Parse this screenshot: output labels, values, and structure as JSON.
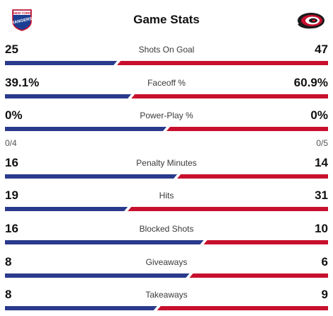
{
  "header": {
    "title": "Game Stats",
    "left_logo_icon": "new-york-rangers-logo-icon",
    "right_logo_icon": "carolina-hurricanes-logo-icon",
    "left_color": "#2a3a8c",
    "right_color": "#c8102e"
  },
  "stats": [
    {
      "label": "Shots On Goal",
      "left": "25",
      "right": "47",
      "left_share": 0.347
    },
    {
      "label": "Faceoff %",
      "left": "39.1%",
      "right": "60.9%",
      "left_share": 0.391
    },
    {
      "label": "Power-Play %",
      "left": "0%",
      "right": "0%",
      "left_share": 0.5,
      "left_sub": "0/4",
      "right_sub": "0/5"
    },
    {
      "label": "Penalty Minutes",
      "left": "16",
      "right": "14",
      "left_share": 0.533
    },
    {
      "label": "Hits",
      "left": "19",
      "right": "31",
      "left_share": 0.38
    },
    {
      "label": "Blocked Shots",
      "left": "16",
      "right": "10",
      "left_share": 0.615
    },
    {
      "label": "Giveaways",
      "left": "8",
      "right": "6",
      "left_share": 0.571
    },
    {
      "label": "Takeaways",
      "left": "8",
      "right": "9",
      "left_share": 0.471
    }
  ]
}
